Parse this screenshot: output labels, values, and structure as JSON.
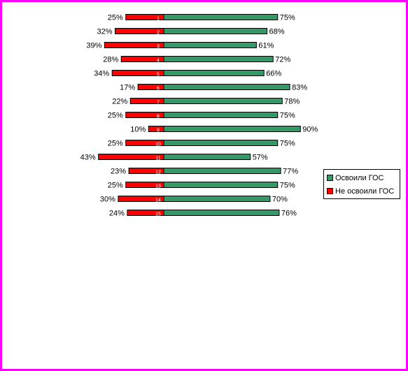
{
  "chart_data": {
    "type": "bar",
    "orientation": "horizontal-diverging",
    "categories": [
      "1",
      "2",
      "3",
      "4",
      "5",
      "6",
      "7",
      "8",
      "9",
      "10",
      "11",
      "12",
      "13",
      "14",
      "15"
    ],
    "series": [
      {
        "name": "Освоили ГОС",
        "color": "#339966",
        "values": [
          75,
          68,
          61,
          72,
          66,
          83,
          78,
          75,
          90,
          75,
          57,
          77,
          75,
          70,
          76
        ],
        "labels": [
          "75%",
          "68%",
          "61%",
          "72%",
          "66%",
          "83%",
          "78%",
          "75%",
          "90%",
          "75%",
          "57%",
          "77%",
          "75%",
          "70%",
          "76%"
        ]
      },
      {
        "name": "Не освоили ГОС",
        "color": "#ff0000",
        "values": [
          25,
          32,
          39,
          28,
          34,
          17,
          22,
          25,
          10,
          25,
          43,
          23,
          25,
          30,
          24
        ],
        "labels": [
          "25%",
          "32%",
          "39%",
          "28%",
          "34%",
          "17%",
          "22%",
          "25%",
          "10%",
          "25%",
          "43%",
          "23%",
          "25%",
          "30%",
          "24%"
        ]
      }
    ],
    "legend_position": "right",
    "grid": false,
    "title": "",
    "xlabel": "",
    "ylabel": ""
  },
  "legend": {
    "items": [
      {
        "label": "Освоили ГОС",
        "color": "#339966"
      },
      {
        "label": "Не освоили ГОС",
        "color": "#ff0000"
      }
    ]
  },
  "colors": {
    "border": "#ff00ff",
    "bar_outline": "#000000",
    "category_label": "#ffffff"
  }
}
